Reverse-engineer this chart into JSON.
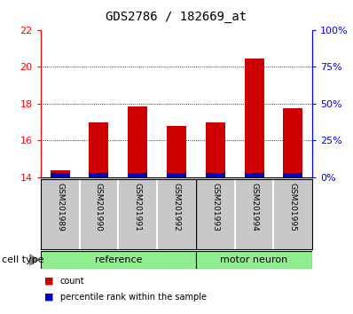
{
  "title": "GDS2786 / 182669_at",
  "samples": [
    "GSM201989",
    "GSM201990",
    "GSM201991",
    "GSM201992",
    "GSM201993",
    "GSM201994",
    "GSM201995"
  ],
  "red_values": [
    14.4,
    17.0,
    17.85,
    16.8,
    17.0,
    20.45,
    17.75
  ],
  "blue_bar_height": 0.22,
  "ylim_left": [
    14,
    22
  ],
  "ylim_right": [
    0,
    100
  ],
  "yticks_left": [
    14,
    16,
    18,
    20,
    22
  ],
  "yticks_right": [
    0,
    25,
    50,
    75,
    100
  ],
  "ytick_labels_right": [
    "0%",
    "25%",
    "50%",
    "75%",
    "100%"
  ],
  "group_boundary": 3.5,
  "bar_width": 0.5,
  "red_color": "#CC0000",
  "blue_color": "#0000CC",
  "legend_items": [
    "count",
    "percentile rank within the sample"
  ],
  "cell_type_label": "cell type",
  "reference_label": "reference",
  "motor_neuron_label": "motor neuron",
  "background_color": "#ffffff",
  "gray_color": "#C8C8C8",
  "green_color": "#90EE90",
  "n_ref": 4,
  "n_total": 7
}
